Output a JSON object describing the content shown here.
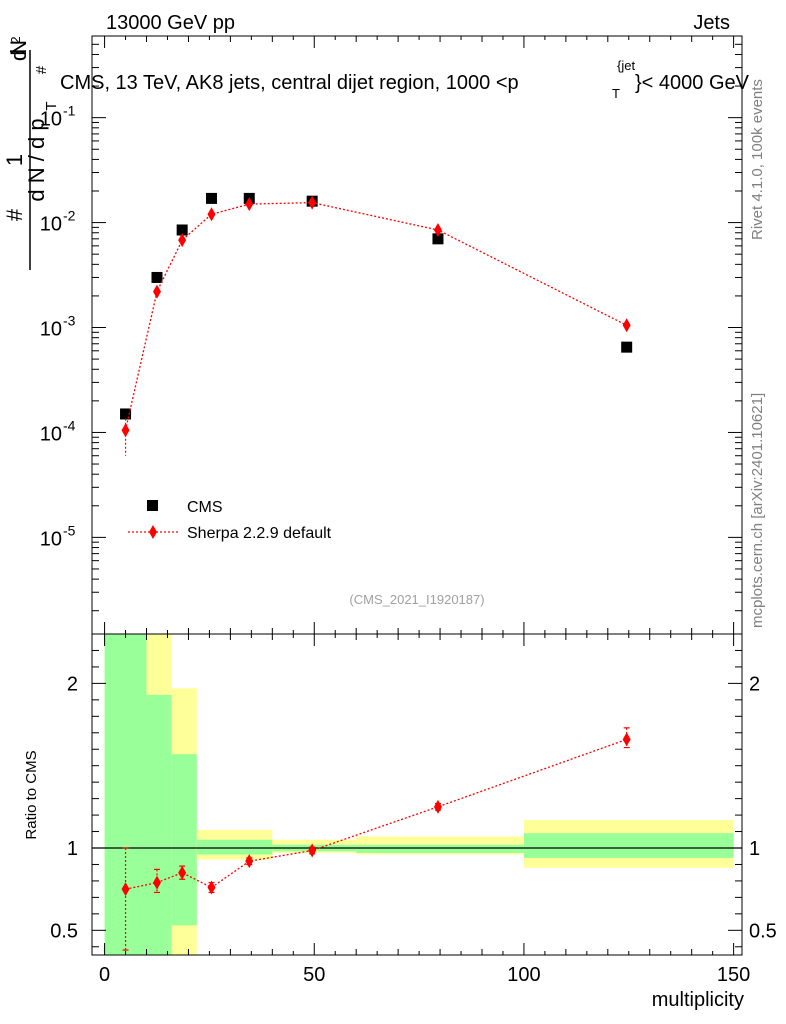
{
  "header": {
    "left_label": "13000 GeV pp",
    "right_label": "Jets"
  },
  "side_labels": {
    "rivet": "Rivet 4.1.0,  100k events",
    "mcplots": "mcplots.cern.ch [arXiv:2401.10621]"
  },
  "colors": {
    "data": "#000000",
    "mc": "#ff0000",
    "band_inner": "#99ff99",
    "band_outer": "#ffff99"
  },
  "chart_data": [
    {
      "type": "scatter",
      "panel": "main",
      "title": "CMS, 13 TeV, AK8 jets, central dijet region, 1000 < p_T^{jet} < 4000 GeV",
      "ylabel": "1/(dN/dp_T) d²N/(dp_T dλ)",
      "yscale": "log",
      "ylim": [
        1.2e-06,
        0.6
      ],
      "xlim": [
        -3,
        152
      ],
      "ytick_labels": [
        {
          "exp": "-5",
          "value": 1e-05
        },
        {
          "exp": "-4",
          "value": 0.0001
        },
        {
          "exp": "-3",
          "value": 0.001
        },
        {
          "exp": "-2",
          "value": 0.01
        },
        {
          "exp": "-1",
          "value": 0.1
        }
      ],
      "analysis_id": "(CMS_2021_I1920187)",
      "series": [
        {
          "name": "CMS",
          "marker": "square",
          "x": [
            5,
            12.5,
            18.5,
            25.5,
            34.5,
            49.5,
            79.5,
            124.5
          ],
          "y": [
            0.00015,
            0.003,
            0.0085,
            0.017,
            0.017,
            0.016,
            0.007,
            0.00065
          ]
        },
        {
          "name": "Sherpa 2.2.9 default",
          "marker": "diamond",
          "x": [
            5,
            12.5,
            18.5,
            25.5,
            34.5,
            49.5,
            79.5,
            124.5
          ],
          "y": [
            0.000105,
            0.0022,
            0.0068,
            0.012,
            0.015,
            0.0155,
            0.0085,
            0.00105
          ],
          "yerr_low": [
            4.5e-05,
            0.0002,
            0.0003,
            0.0003,
            0.0003,
            0.0003,
            0.0002,
            5e-05
          ],
          "yerr_high": [
            3e-05,
            0.0002,
            0.0003,
            0.0003,
            0.0003,
            0.0003,
            0.0002,
            5e-05
          ]
        }
      ]
    },
    {
      "type": "scatter",
      "panel": "ratio",
      "ylabel": "Ratio to CMS",
      "xlabel": "multiplicity",
      "ylim": [
        0.35,
        2.3
      ],
      "xlim": [
        -3,
        152
      ],
      "xtick_labels": [
        "0",
        "50",
        "100",
        "150"
      ],
      "xticks": [
        0,
        50,
        100,
        150
      ],
      "ytick_labels": [
        "0.5",
        "1",
        "2"
      ],
      "yticks": [
        0.5,
        1,
        2
      ],
      "uncertainty_bands": [
        {
          "x0": 0,
          "x1": 10,
          "inner": [
            0.35,
            2.3
          ],
          "outer": [
            0.35,
            2.3
          ]
        },
        {
          "x0": 10,
          "x1": 16,
          "inner": [
            0.35,
            1.93
          ],
          "outer": [
            0.35,
            2.3
          ]
        },
        {
          "x0": 16,
          "x1": 22,
          "inner": [
            0.53,
            1.57
          ],
          "outer": [
            0.35,
            1.97
          ]
        },
        {
          "x0": 22,
          "x1": 40,
          "inner": [
            0.96,
            1.05
          ],
          "outer": [
            0.93,
            1.11
          ]
        },
        {
          "x0": 40,
          "x1": 60,
          "inner": [
            0.98,
            1.02
          ],
          "outer": [
            0.97,
            1.05
          ]
        },
        {
          "x0": 60,
          "x1": 100,
          "inner": [
            0.97,
            1.02
          ],
          "outer": [
            0.96,
            1.07
          ]
        },
        {
          "x0": 100,
          "x1": 150,
          "inner": [
            0.94,
            1.09
          ],
          "outer": [
            0.88,
            1.17
          ]
        }
      ],
      "series": [
        {
          "name": "Sherpa 2.2.9 default",
          "x": [
            5,
            12.5,
            18.5,
            25.5,
            34.5,
            49.5,
            79.5,
            124.5
          ],
          "y": [
            0.75,
            0.79,
            0.85,
            0.76,
            0.92,
            0.985,
            1.25,
            1.66
          ],
          "yerr_low": [
            0.37,
            0.06,
            0.04,
            0.03,
            0.02,
            0.02,
            0.02,
            0.05
          ],
          "yerr_high": [
            0.25,
            0.08,
            0.04,
            0.03,
            0.02,
            0.02,
            0.02,
            0.07
          ]
        }
      ]
    }
  ]
}
